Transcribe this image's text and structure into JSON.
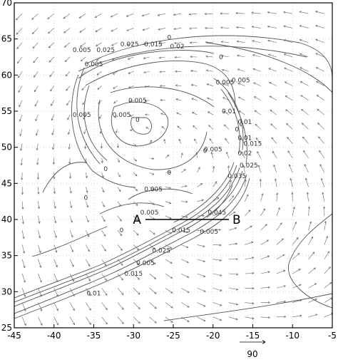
{
  "chart_data": {
    "type": "vector-contour",
    "xlim": [
      -45,
      -5
    ],
    "ylim": [
      25,
      70
    ],
    "x_ticks": [
      -45,
      -40,
      -35,
      -30,
      -25,
      -20,
      -15,
      -10,
      -5
    ],
    "y_ticks": [
      25,
      30,
      35,
      40,
      45,
      50,
      55,
      60,
      65,
      70
    ],
    "x_tick_labels": [
      "-45",
      "-40",
      "-35",
      "-30",
      "-25",
      "-20",
      "-15",
      "-10",
      "-5"
    ],
    "y_tick_labels": [
      "25",
      "30",
      "35",
      "40",
      "45",
      "50",
      "55",
      "60",
      "65",
      "70"
    ],
    "grid": true,
    "section": {
      "start_label": "A",
      "end_label": "B",
      "start": [
        -28.5,
        40
      ],
      "end": [
        -18,
        40
      ]
    },
    "vector_reference": {
      "label": "90",
      "magnitude": 90
    },
    "cyclone_center": [
      -30,
      52
    ],
    "contour_labels": [
      {
        "text": "0",
        "x": -25.5,
        "y": 65.2
      },
      {
        "text": "0.025",
        "x": -30.5,
        "y": 64.3
      },
      {
        "text": "0.015",
        "x": -27.5,
        "y": 64.3
      },
      {
        "text": "0.02",
        "x": -24.5,
        "y": 64.0
      },
      {
        "text": "0.005",
        "x": -36.5,
        "y": 63.5
      },
      {
        "text": "0.025",
        "x": -33.5,
        "y": 63.5
      },
      {
        "text": "0.005",
        "x": -35.0,
        "y": 61.5
      },
      {
        "text": "0",
        "x": -19.0,
        "y": 62.5
      },
      {
        "text": "0.005",
        "x": -16.5,
        "y": 59.3
      },
      {
        "text": "0.005",
        "x": -18.5,
        "y": 59.0
      },
      {
        "text": "0.005",
        "x": -29.5,
        "y": 56.5
      },
      {
        "text": "0.005",
        "x": -31.5,
        "y": 54.5
      },
      {
        "text": "0.005",
        "x": -36.5,
        "y": 54.5
      },
      {
        "text": "0.01",
        "x": -18.0,
        "y": 55.0
      },
      {
        "text": "0.01",
        "x": -16.0,
        "y": 53.5
      },
      {
        "text": "0",
        "x": -29.5,
        "y": 53.8
      },
      {
        "text": "0",
        "x": -17.0,
        "y": 52.5
      },
      {
        "text": "0.015",
        "x": -15.0,
        "y": 50.5
      },
      {
        "text": "0.01",
        "x": -16.0,
        "y": 51.3
      },
      {
        "text": "0",
        "x": -21.0,
        "y": 49.5
      },
      {
        "text": "0.005",
        "x": -20.0,
        "y": 49.7
      },
      {
        "text": "0.02",
        "x": -16.0,
        "y": 49.2
      },
      {
        "text": "0.025",
        "x": -15.5,
        "y": 47.5
      },
      {
        "text": "0",
        "x": -33.5,
        "y": 47.0
      },
      {
        "text": "0",
        "x": -25.5,
        "y": 46.5
      },
      {
        "text": "0.035",
        "x": -17.0,
        "y": 46.0
      },
      {
        "text": "0.005",
        "x": -27.5,
        "y": 44.2
      },
      {
        "text": "0",
        "x": -36.0,
        "y": 43.0
      },
      {
        "text": "0.005",
        "x": -28.0,
        "y": 41.0
      },
      {
        "text": "0.045",
        "x": -19.5,
        "y": 41.0
      },
      {
        "text": "0",
        "x": -31.5,
        "y": 38.5
      },
      {
        "text": "0.015",
        "x": -24.0,
        "y": 38.5
      },
      {
        "text": "0.005",
        "x": -20.5,
        "y": 38.3
      },
      {
        "text": "0.025",
        "x": -26.5,
        "y": 35.7
      },
      {
        "text": "0.005",
        "x": -28.5,
        "y": 34.0
      },
      {
        "text": "0.015",
        "x": -30.0,
        "y": 32.5
      },
      {
        "text": "0.01",
        "x": -35.0,
        "y": 29.8
      }
    ]
  }
}
